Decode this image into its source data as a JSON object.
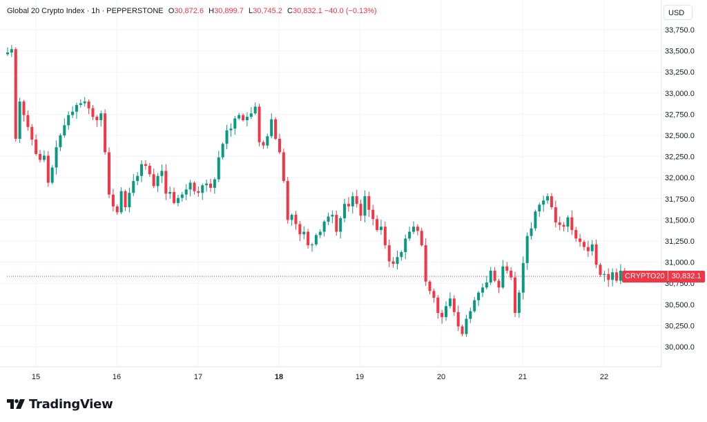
{
  "legend": {
    "title": "Global 20 Crypto Index · 1h · PEPPERSTONE",
    "open_label": "O",
    "open": "30,872.6",
    "high_label": "H",
    "high": "30,899.7",
    "low_label": "L",
    "low": "30,745.2",
    "close_label": "C",
    "close": "30,832.1",
    "change": "−40.0 (−0.13%)"
  },
  "currency": "USD",
  "price_tag": {
    "symbol": "CRYPTO20",
    "value": "30,832.1"
  },
  "brand": {
    "name": "TradingView"
  },
  "colors": {
    "up": "#089981",
    "down": "#f23645",
    "grid": "#f0f3fa",
    "axis_text": "#131722"
  },
  "chart_data": {
    "type": "candlestick",
    "interval": "1h",
    "y_ticks": [
      30000,
      30250,
      30500,
      30750,
      31000,
      31250,
      31500,
      31750,
      32000,
      32250,
      32500,
      32750,
      33000,
      33250,
      33500,
      33750
    ],
    "y_tick_labels": [
      "30,000.0",
      "30,250.0",
      "30,500.0",
      "30,750.0",
      "31,000.0",
      "31,250.0",
      "31,500.0",
      "31,750.0",
      "32,000.0",
      "32,250.0",
      "32,500.0",
      "32,750.0",
      "33,000.0",
      "33,250.0",
      "33,500.0",
      "33,750.0"
    ],
    "ylim": [
      29780,
      33960
    ],
    "x_ticks": [
      {
        "label": "15",
        "bold": false
      },
      {
        "label": "16",
        "bold": false
      },
      {
        "label": "17",
        "bold": false
      },
      {
        "label": "18",
        "bold": true
      },
      {
        "label": "19",
        "bold": false
      },
      {
        "label": "20",
        "bold": false
      },
      {
        "label": "21",
        "bold": false
      },
      {
        "label": "22",
        "bold": false
      }
    ],
    "last_price": 30832.1,
    "closes": [
      33480,
      33520,
      32460,
      32900,
      32740,
      32600,
      32450,
      32280,
      32210,
      32260,
      31940,
      32120,
      32360,
      32500,
      32620,
      32740,
      32780,
      32860,
      32880,
      32900,
      32820,
      32720,
      32680,
      32760,
      32300,
      31800,
      31660,
      31590,
      31840,
      31650,
      31820,
      31960,
      32020,
      32160,
      32140,
      32040,
      31900,
      32020,
      32080,
      31810,
      31830,
      31700,
      31760,
      31800,
      31860,
      31940,
      31840,
      31820,
      31910,
      31930,
      31880,
      31980,
      32240,
      32400,
      32560,
      32580,
      32700,
      32740,
      32680,
      32720,
      32760,
      32840,
      32420,
      32380,
      32490,
      32690,
      32460,
      32300,
      31960,
      31500,
      31560,
      31450,
      31330,
      31360,
      31200,
      31210,
      31320,
      31360,
      31480,
      31540,
      31560,
      31360,
      31520,
      31690,
      31660,
      31780,
      31690,
      31550,
      31780,
      31620,
      31510,
      31380,
      31420,
      31200,
      31010,
      30980,
      31060,
      31120,
      31280,
      31360,
      31420,
      31370,
      31200,
      30770,
      30660,
      30580,
      30400,
      30350,
      30480,
      30570,
      30410,
      30240,
      30150,
      30330,
      30420,
      30550,
      30640,
      30700,
      30760,
      30900,
      30780,
      30700,
      30950,
      30900,
      30820,
      30400,
      30640,
      30990,
      31310,
      31400,
      31600,
      31680,
      31730,
      31780,
      31650,
      31470,
      31440,
      31420,
      31530,
      31380,
      31280,
      31240,
      31180,
      31130,
      31210,
      30970,
      30850,
      30860,
      30790,
      30880,
      30780,
      30900,
      30832.1
    ],
    "ohlc_first": [
      33460,
      33540,
      33440,
      33480
    ]
  }
}
